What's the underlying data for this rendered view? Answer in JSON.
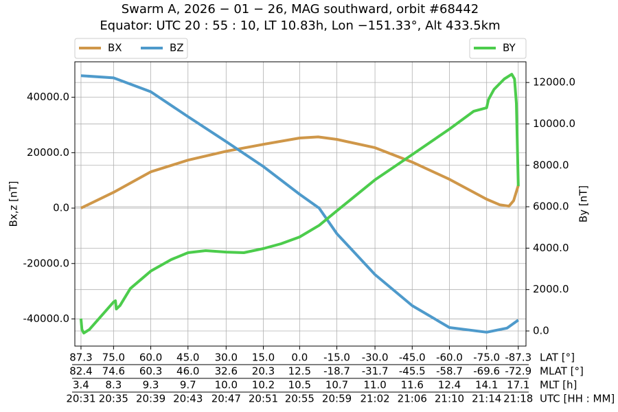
{
  "chart_data": {
    "type": "line",
    "title": "Swarm A, 2026 − 01 − 26, MAG southward, orbit #68442",
    "subtitle": "Equator: UTC 20 : 55 : 10, LT 10.83h, Lon −151.33°, Alt 433.5km",
    "ylabel": "Bx,z [nT]",
    "y2label": "By [nT]",
    "xlim": [
      -0.66,
      47.83
    ],
    "ylim": [
      -49800,
      52800
    ],
    "y2lim": [
      -730,
      13000
    ],
    "yticks": [
      {
        "value": -40000,
        "label": "-40000.0"
      },
      {
        "value": -20000,
        "label": "-20000.0"
      },
      {
        "value": 0,
        "label": "0.0"
      },
      {
        "value": 20000,
        "label": "20000.0"
      },
      {
        "value": 40000,
        "label": "40000.0"
      }
    ],
    "y2ticks": [
      {
        "value": 0,
        "label": "0.0"
      },
      {
        "value": 2000,
        "label": "2000.0"
      },
      {
        "value": 4000,
        "label": "4000.0"
      },
      {
        "value": 6000,
        "label": "6000.0"
      },
      {
        "value": 8000,
        "label": "8000.0"
      },
      {
        "value": 10000,
        "label": "10000.0"
      },
      {
        "value": 12000,
        "label": "12000.0"
      }
    ],
    "xticks": [
      {
        "value": 0,
        "label": "20:31"
      },
      {
        "value": 3.5,
        "label": "20:35"
      },
      {
        "value": 7.5,
        "label": "20:39"
      },
      {
        "value": 11.5,
        "label": "20:43"
      },
      {
        "value": 15.6,
        "label": "20:47"
      },
      {
        "value": 19.6,
        "label": "20:51"
      },
      {
        "value": 23.5,
        "label": "20:55"
      },
      {
        "value": 27.5,
        "label": "20:59"
      },
      {
        "value": 31.6,
        "label": "21:02"
      },
      {
        "value": 35.6,
        "label": "21:06"
      },
      {
        "value": 39.6,
        "label": "21:10"
      },
      {
        "value": 43.6,
        "label": "21:14"
      },
      {
        "value": 47.0,
        "label": "21:18"
      }
    ],
    "xticks_name": "UTC [HH : MM]",
    "x_label_rows": [
      {
        "name": "LAT [°]",
        "labels": [
          "87.3",
          "75.0",
          "60.0",
          "45.0",
          "30.0",
          "15.0",
          "0.0",
          "-15.0",
          "-30.0",
          "-45.0",
          "-60.0",
          "-75.0",
          "-87.3"
        ]
      },
      {
        "name": "MLAT [°]",
        "labels": [
          "82.4",
          "74.6",
          "60.3",
          "46.0",
          "32.6",
          "20.3",
          "12.5",
          "-18.7",
          "-31.7",
          "-45.5",
          "-58.7",
          "-69.6",
          "-72.9"
        ]
      },
      {
        "name": "MLT [h]",
        "labels": [
          "3.4",
          "8.3",
          "9.3",
          "9.7",
          "10.0",
          "10.2",
          "10.5",
          "10.7",
          "11.0",
          "11.6",
          "12.4",
          "14.1",
          "17.1"
        ]
      }
    ],
    "grid": true,
    "legend_loc": "upper left",
    "legend2_loc": "upper right",
    "series": [
      {
        "name": "BX",
        "color": "#cf9749",
        "axis": "y",
        "x": [
          0,
          3.5,
          7.5,
          11.5,
          15.6,
          19.6,
          23.5,
          25.5,
          27.5,
          31.6,
          35.6,
          39.6,
          43.6,
          45.0,
          46.0,
          46.5,
          47.0
        ],
        "values": [
          0,
          5700,
          13100,
          17300,
          20500,
          23000,
          25300,
          25700,
          24800,
          21800,
          16600,
          10400,
          3200,
          1200,
          700,
          2700,
          8200
        ]
      },
      {
        "name": "BZ",
        "color": "#4e9acb",
        "axis": "y",
        "x": [
          0,
          3.5,
          7.5,
          11.5,
          15.6,
          19.6,
          23.5,
          25.6,
          27.5,
          31.6,
          35.6,
          39.6,
          43.6,
          45.8,
          47.0
        ],
        "values": [
          47800,
          47000,
          42000,
          33000,
          24000,
          15000,
          5000,
          0,
          -9200,
          -24000,
          -35200,
          -43100,
          -44800,
          -43300,
          -40400
        ]
      },
      {
        "name": "BY",
        "color": "#4ccc4c",
        "axis": "y2",
        "x": [
          0,
          0.1,
          0.3,
          0.9,
          3.5,
          3.7,
          3.8,
          4.2,
          5.3,
          7.5,
          9.7,
          11.5,
          13.4,
          15.6,
          17.5,
          19.6,
          21.5,
          23.5,
          25.6,
          27.5,
          31.6,
          35.6,
          39.6,
          42.2,
          43.6,
          43.8,
          44.4,
          45.5,
          46.3,
          46.6,
          46.8,
          47.0
        ],
        "values": [
          600,
          70,
          -100,
          70,
          1400,
          1460,
          1060,
          1230,
          2050,
          2890,
          3450,
          3780,
          3880,
          3810,
          3780,
          3980,
          4210,
          4540,
          5100,
          5800,
          7300,
          8520,
          9750,
          10610,
          10780,
          11180,
          11670,
          12170,
          12400,
          12170,
          11000,
          7000
        ]
      }
    ]
  }
}
